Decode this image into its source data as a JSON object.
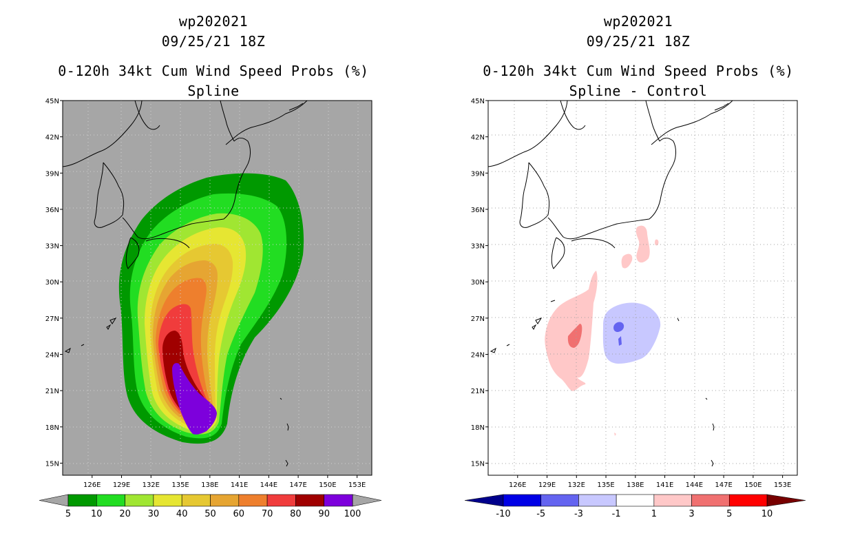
{
  "left_panel": {
    "storm_id": "wp202021",
    "datetime": "09/25/21 18Z",
    "title": "0-120h 34kt Cum Wind Speed Probs (%)",
    "subtitle": "Spline"
  },
  "right_panel": {
    "storm_id": "wp202021",
    "datetime": "09/25/21 18Z",
    "title": "0-120h 34kt Cum Wind Speed Probs (%)",
    "subtitle": "Spline - Control"
  },
  "chart_data": [
    {
      "type": "heatmap",
      "name": "spline",
      "title": "0-120h 34kt Cum Wind Speed Probs (%)",
      "subtitle": "Spline",
      "x_ticks": [
        "126E",
        "129E",
        "132E",
        "135E",
        "138E",
        "141E",
        "144E",
        "147E",
        "150E",
        "153E"
      ],
      "y_ticks": [
        "15N",
        "18N",
        "21N",
        "24N",
        "27N",
        "30N",
        "33N",
        "36N",
        "39N",
        "42N",
        "45N"
      ],
      "lon_range": [
        123,
        154.5
      ],
      "lat_range": [
        14,
        45
      ],
      "background_color": "#a6a6a6",
      "colorbar": {
        "labels": [
          "5",
          "10",
          "20",
          "30",
          "40",
          "50",
          "60",
          "70",
          "80",
          "90",
          "100"
        ],
        "colors": [
          "#009900",
          "#22dd22",
          "#a0e632",
          "#e6e632",
          "#e6c832",
          "#e6a532",
          "#ee7f2d",
          "#f03c3c",
          "#a00000",
          "#7d00dc"
        ],
        "under_color": "#a6a6a6",
        "over_color": "#a6a6a6"
      },
      "contour_levels": [
        5,
        10,
        20,
        30,
        40,
        50,
        60,
        70,
        80,
        90
      ],
      "grid": true
    },
    {
      "type": "heatmap",
      "name": "spline_minus_control",
      "title": "0-120h 34kt Cum Wind Speed Probs (%)",
      "subtitle": "Spline - Control",
      "x_ticks": [
        "126E",
        "129E",
        "132E",
        "135E",
        "138E",
        "141E",
        "144E",
        "147E",
        "150E",
        "153E"
      ],
      "y_ticks": [
        "15N",
        "18N",
        "21N",
        "24N",
        "27N",
        "30N",
        "33N",
        "36N",
        "39N",
        "42N",
        "45N"
      ],
      "lon_range": [
        123,
        154.5
      ],
      "lat_range": [
        14,
        45
      ],
      "background_color": "#ffffff",
      "colorbar": {
        "labels": [
          "-10",
          "-5",
          "-3",
          "-1",
          "1",
          "3",
          "5",
          "10"
        ],
        "colors": [
          "#0000e6",
          "#6464f0",
          "#c8c8ff",
          "#ffffff",
          "#ffc8c8",
          "#f07070",
          "#ff0000"
        ],
        "under_color": "#00008c",
        "over_color": "#780000"
      },
      "contour_levels": [
        -10,
        -5,
        -3,
        -1,
        1,
        3,
        5,
        10
      ],
      "grid": true
    }
  ]
}
